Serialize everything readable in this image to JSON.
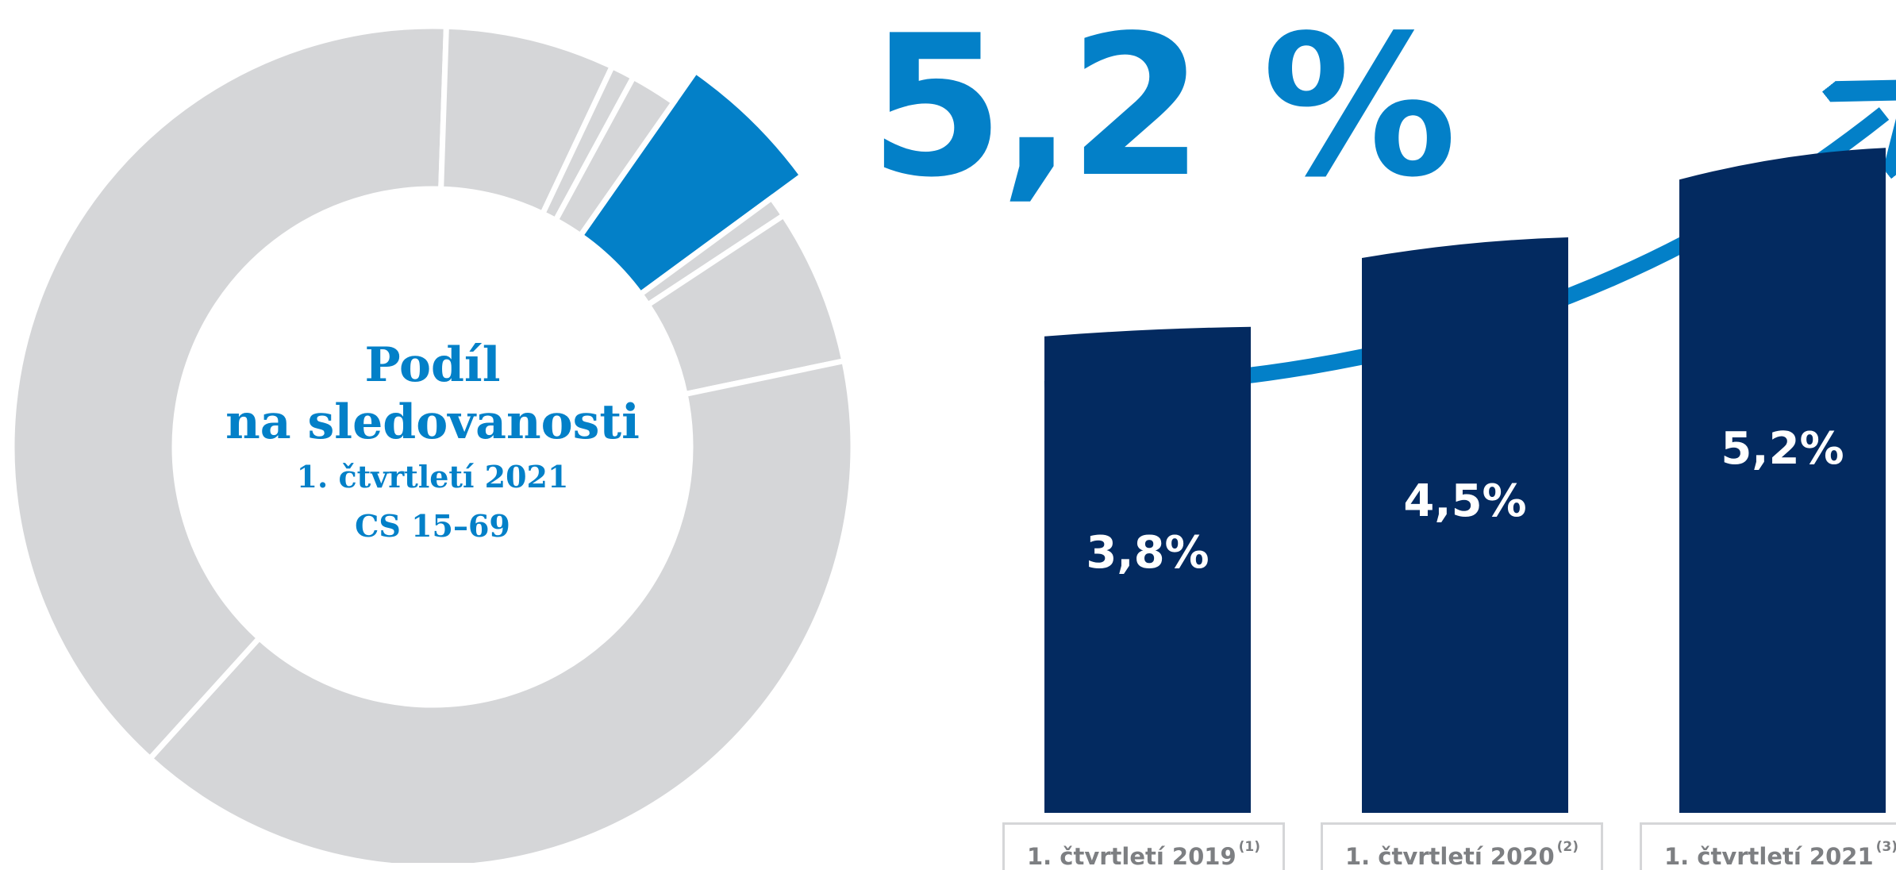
{
  "big_value": "5,2 %",
  "donut": {
    "title_line1": "Podíl",
    "title_line2": "na sledovanosti",
    "subtitle_line1": "1. čtvrtletí 2021",
    "subtitle_line2": "CS 15–69"
  },
  "colors": {
    "highlight": "#0380c8",
    "other": "#d5d6d8",
    "bar": "#032a60",
    "box_border": "#d5d6d8",
    "box_text": "#7d7f82"
  },
  "chart_data": [
    {
      "type": "pie",
      "variant": "donut",
      "title": "Podíl na sledovanosti",
      "subtitle": "1. čtvrtletí 2021 CS 15–69",
      "highlight_value": 5.2,
      "highlight_label": "5,2 %",
      "slices": [
        {
          "value": 5.2,
          "highlight": true
        },
        {
          "value": 0.8
        },
        {
          "value": 6.0
        },
        {
          "value": 40.0
        },
        {
          "value": 38.8
        },
        {
          "value": 6.5
        },
        {
          "value": 0.9
        },
        {
          "value": 1.8
        }
      ]
    },
    {
      "type": "bar",
      "title": "",
      "xlabel": "",
      "ylabel": "",
      "ylim": [
        0,
        5.4
      ],
      "categories": [
        "1. čtvrtletí 2019",
        "1. čtvrtletí 2020",
        "1. čtvrtletí 2021"
      ],
      "footnotes": [
        "(1)",
        "(2)",
        "(3)"
      ],
      "values": [
        3.8,
        4.5,
        5.2
      ],
      "labels": [
        "3,8%",
        "4,5%",
        "5,2%"
      ]
    }
  ]
}
